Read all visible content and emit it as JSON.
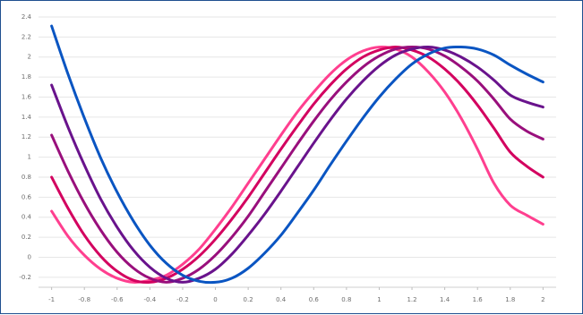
{
  "chart_data": {
    "type": "line",
    "title": "",
    "xlabel": "",
    "ylabel": "",
    "xlim": [
      -1.08,
      2.08
    ],
    "ylim": [
      -0.3,
      2.4
    ],
    "grid": true,
    "legend": "none",
    "x_ticks": [
      "-1",
      "-0.8",
      "-0.6",
      "-0.4",
      "-0.2",
      "0",
      "0.2",
      "0.4",
      "0.6",
      "0.8",
      "1",
      "1.2",
      "1.4",
      "1.6",
      "1.8",
      "2"
    ],
    "y_ticks": [
      "-0.2",
      "0",
      "0.2",
      "0.4",
      "0.6",
      "0.8",
      "1",
      "1.2",
      "1.4",
      "1.6",
      "1.8",
      "2",
      "2.2",
      "2.4"
    ],
    "x": [
      -1.0,
      -0.9,
      -0.8,
      -0.7,
      -0.6,
      -0.5,
      -0.4,
      -0.3,
      -0.2,
      -0.1,
      0.0,
      0.1,
      0.2,
      0.3,
      0.4,
      0.5,
      0.6,
      0.7,
      0.8,
      0.9,
      1.0,
      1.1,
      1.2,
      1.3,
      1.4,
      1.5,
      1.6,
      1.7,
      1.8,
      1.9,
      2.0
    ],
    "series": [
      {
        "color": "#ff3f8f",
        "values": [
          0.46,
          0.21,
          0.02,
          -0.12,
          -0.21,
          -0.25,
          -0.23,
          -0.18,
          -0.07,
          0.08,
          0.28,
          0.5,
          0.74,
          0.98,
          1.22,
          1.45,
          1.65,
          1.83,
          1.97,
          2.06,
          2.1,
          2.08,
          2.0,
          1.85,
          1.65,
          1.39,
          1.08,
          0.74,
          0.52,
          0.42,
          0.33
        ]
      },
      {
        "color": "#d3005f",
        "values": [
          0.8,
          0.49,
          0.22,
          0.01,
          -0.14,
          -0.23,
          -0.25,
          -0.21,
          -0.12,
          0.01,
          0.18,
          0.38,
          0.6,
          0.84,
          1.08,
          1.31,
          1.53,
          1.72,
          1.88,
          2.0,
          2.07,
          2.1,
          2.07,
          2.0,
          1.88,
          1.72,
          1.52,
          1.29,
          1.05,
          0.91,
          0.8
        ]
      },
      {
        "color": "#990f7c",
        "values": [
          1.22,
          0.86,
          0.54,
          0.27,
          0.05,
          -0.11,
          -0.21,
          -0.25,
          -0.21,
          -0.12,
          0.02,
          0.2,
          0.41,
          0.65,
          0.89,
          1.13,
          1.36,
          1.57,
          1.75,
          1.9,
          2.01,
          2.08,
          2.1,
          2.08,
          2.01,
          1.9,
          1.76,
          1.58,
          1.38,
          1.26,
          1.18
        ]
      },
      {
        "color": "#69138c",
        "values": [
          1.72,
          1.3,
          0.92,
          0.58,
          0.3,
          0.07,
          -0.1,
          -0.21,
          -0.25,
          -0.21,
          -0.12,
          0.03,
          0.22,
          0.43,
          0.66,
          0.9,
          1.14,
          1.37,
          1.58,
          1.76,
          1.91,
          2.02,
          2.08,
          2.1,
          2.07,
          2.0,
          1.9,
          1.77,
          1.62,
          1.55,
          1.5
        ]
      },
      {
        "color": "#0a55c2",
        "values": [
          2.31,
          1.83,
          1.39,
          0.99,
          0.65,
          0.36,
          0.12,
          -0.06,
          -0.18,
          -0.24,
          -0.25,
          -0.21,
          -0.11,
          0.04,
          0.22,
          0.44,
          0.67,
          0.92,
          1.16,
          1.39,
          1.6,
          1.78,
          1.93,
          2.03,
          2.09,
          2.1,
          2.08,
          2.02,
          1.92,
          1.83,
          1.75
        ]
      }
    ]
  }
}
